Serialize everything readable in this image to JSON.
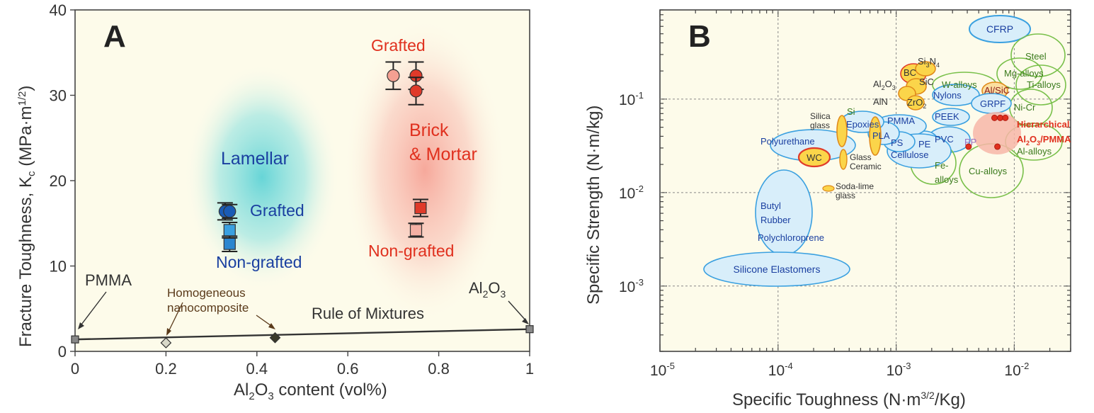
{
  "panel_a": {
    "letter": "A",
    "xlabel_parts": [
      "Al",
      "2",
      "O",
      "3",
      " content (vol%)"
    ],
    "ylabel_parts": [
      "Fracture Toughness, K",
      "c",
      " (MPa·m",
      "1/2",
      ")"
    ],
    "groups": {
      "lamellar": "Lamellar",
      "brick_mortar_1": "Brick",
      "brick_mortar_2": "& Mortar",
      "lamellar_grafted": "Grafted",
      "lamellar_nongrafted": "Non-grafted",
      "bm_grafted": "Grafted",
      "bm_nongrafted": "Non-grafted"
    },
    "annotations": {
      "pmma": "PMMA",
      "homog_1": "Homogeneous",
      "homog_2": "nanocomposite",
      "rule": "Rule of Mixtures",
      "al2o3_parts": [
        "Al",
        "2",
        "O",
        "3"
      ]
    }
  },
  "panel_b": {
    "letter": "B",
    "xlabel_parts": [
      "Specific Toughness (N·m",
      "3/2",
      "/Kg)"
    ],
    "ylabel": "Specific Strength (N·m/kg)",
    "materials": [
      {
        "text": "CFRP",
        "color": "#1a3fa0"
      },
      {
        "text": "Steel",
        "color": "#3a7a1c"
      },
      {
        "text": "Mg-alloys",
        "color": "#3a7a1c"
      },
      {
        "text": "Ti-alloys",
        "color": "#3a7a1c"
      },
      {
        "text": "Ni-Cr",
        "color": "#3a7a1c"
      },
      {
        "text": "W-alloys",
        "color": "#3a7a1c"
      },
      {
        "text": "Nylons",
        "color": "#1a3fa0"
      },
      {
        "text": "Al/SiC",
        "color": "#8b1a1a"
      },
      {
        "text": "GRPF",
        "color": "#1a3fa0"
      },
      {
        "text": "PEEK",
        "color": "#1a3fa0"
      },
      {
        "text": "PVC",
        "color": "#1a3fa0"
      },
      {
        "text": "PP",
        "color": "#9a6fc0"
      },
      {
        "text": "PE",
        "color": "#1a3fa0"
      },
      {
        "text": "PS",
        "color": "#1a3fa0"
      },
      {
        "text": "PLA",
        "color": "#1a3fa0"
      },
      {
        "text": "PMMA",
        "color": "#1a3fa0"
      },
      {
        "text": "Epoxies",
        "color": "#1a3fa0"
      },
      {
        "text": "Cellulose",
        "color": "#1a3fa0"
      },
      {
        "text": "Polyurethane",
        "color": "#1a3fa0"
      },
      {
        "text": "WC",
        "color": "#333333"
      },
      {
        "text": "Si",
        "color": "#3a7a1c"
      },
      {
        "text": "Silica",
        "color": "#333333"
      },
      {
        "text": "glass",
        "color": "#333333"
      },
      {
        "text": "Glass",
        "color": "#333333"
      },
      {
        "text": "Ceramic",
        "color": "#333333"
      },
      {
        "text": "Soda-lime",
        "color": "#333333"
      },
      {
        "text": "glass",
        "color": "#333333"
      },
      {
        "text": "BC",
        "color": "#333333"
      },
      {
        "text": "SiC",
        "color": "#333333"
      },
      {
        "text": "AlN",
        "color": "#333333"
      },
      {
        "text": "Fe-",
        "color": "#3a7a1c"
      },
      {
        "text": "alloys",
        "color": "#3a7a1c"
      },
      {
        "text": "Cu-alloys",
        "color": "#3a7a1c"
      },
      {
        "text": "Al-alloys",
        "color": "#3a7a1c"
      },
      {
        "text": "Hierarchical",
        "color": "#e0301e"
      },
      {
        "text": "Butyl",
        "color": "#1a3fa0"
      },
      {
        "text": "Rubber",
        "color": "#1a3fa0"
      },
      {
        "text": "Polychloroprene",
        "color": "#1a3fa0"
      },
      {
        "text": "Silicone Elastomers",
        "color": "#1a3fa0"
      }
    ],
    "sub_labels": {
      "si3n4": [
        "Si",
        "3",
        "N",
        "4"
      ],
      "al2o3": [
        "Al",
        "2",
        "O",
        "3"
      ],
      "zro2": [
        "ZrO",
        "2"
      ],
      "hier_al2o3": [
        "Al",
        "2",
        "O",
        "3",
        "/PMMA"
      ]
    }
  },
  "chart_data": [
    {
      "type": "scatter",
      "xlabel": "Al2O3 content (vol%)",
      "ylabel": "Fracture Toughness, Kc (MPa·m1/2)",
      "xlim": [
        0,
        1
      ],
      "ylim": [
        0,
        40
      ],
      "xticks": [
        "0",
        "0.2",
        "0.4",
        "0.6",
        "0.8",
        "1"
      ],
      "yticks": [
        "0",
        "10",
        "20",
        "30",
        "40"
      ],
      "series": [
        {
          "name": "Lamellar Grafted",
          "marker": "circle",
          "color": "#1a5bb5",
          "points": [
            {
              "x": 0.33,
              "y": 16.4,
              "err": 1.0
            },
            {
              "x": 0.34,
              "y": 16.4,
              "err": 0.8
            }
          ]
        },
        {
          "name": "Lamellar Non-grafted",
          "marker": "square",
          "color": "#3aa0e0",
          "points": [
            {
              "x": 0.34,
              "y": 12.6,
              "err": 0.9
            },
            {
              "x": 0.34,
              "y": 14.2,
              "err": 0.9
            }
          ]
        },
        {
          "name": "Brick & Mortar Grafted",
          "marker": "circle",
          "color": "#e03a2a",
          "points": [
            {
              "x": 0.7,
              "y": 32.3,
              "err": 1.6
            },
            {
              "x": 0.75,
              "y": 32.3,
              "err": 1.6
            },
            {
              "x": 0.75,
              "y": 30.5,
              "err": 1.6
            }
          ]
        },
        {
          "name": "Brick & Mortar Non-grafted",
          "marker": "square",
          "color": "#e03a2a",
          "points": [
            {
              "x": 0.76,
              "y": 16.8,
              "err": 1.0
            },
            {
              "x": 0.75,
              "y": 14.2,
              "err": 0.8
            }
          ]
        },
        {
          "name": "Rule of Mixtures",
          "marker": "line",
          "color": "#333333",
          "points": [
            {
              "x": 0.0,
              "y": 1.4
            },
            {
              "x": 1.0,
              "y": 2.6
            }
          ]
        },
        {
          "name": "PMMA",
          "marker": "square",
          "color": "#888888",
          "points": [
            {
              "x": 0.0,
              "y": 1.4
            }
          ]
        },
        {
          "name": "Al2O3",
          "marker": "square",
          "color": "#888888",
          "points": [
            {
              "x": 1.0,
              "y": 2.6
            }
          ]
        },
        {
          "name": "Homogeneous nanocomposite",
          "marker": "diamond",
          "color": "#888888",
          "points": [
            {
              "x": 0.2,
              "y": 1.0
            },
            {
              "x": 0.44,
              "y": 1.6
            }
          ]
        }
      ]
    },
    {
      "type": "scatter",
      "xlabel": "Specific Toughness (N·m3/2/Kg)",
      "ylabel": "Specific Strength (N·m/kg)",
      "xscale": "log",
      "yscale": "log",
      "xlim": [
        1e-05,
        0.03
      ],
      "ylim": [
        0.0002,
        0.9
      ],
      "xticks": [
        "10-5",
        "10-4",
        "10-3",
        "10-2"
      ],
      "yticks": [
        "10-3",
        "10-2",
        "10-1"
      ],
      "grid": true,
      "series": [
        {
          "name": "Hierarchical Al2O3/PMMA",
          "color": "#e0301e",
          "points": [
            {
              "x": 0.0068,
              "y": 0.063
            },
            {
              "x": 0.0076,
              "y": 0.063
            },
            {
              "x": 0.0084,
              "y": 0.063
            },
            {
              "x": 0.0041,
              "y": 0.031
            },
            {
              "x": 0.0072,
              "y": 0.031
            }
          ]
        }
      ]
    }
  ]
}
